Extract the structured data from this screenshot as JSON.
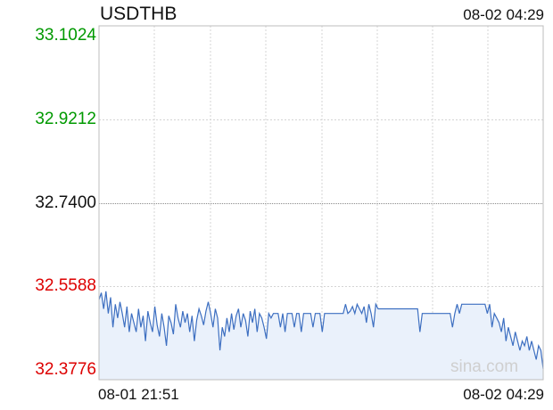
{
  "header": {
    "symbol": "USDTHB",
    "timestamp": "08-02 04:29"
  },
  "watermark": "sina.com",
  "colors": {
    "above": "#009900",
    "neutral": "#111111",
    "below": "#dd0000",
    "line": "#3d6fc1",
    "fill": "#eaf1fb",
    "grid": "#d4d4d4"
  },
  "chart_data": {
    "type": "area",
    "title": "USDTHB",
    "xlabel": "",
    "ylabel": "",
    "ylim": [
      32.3776,
      33.1024
    ],
    "y_ticks": [
      "33.1024",
      "32.9212",
      "32.7400",
      "32.5588",
      "32.3776"
    ],
    "reference_value": 32.74,
    "x_range": [
      "08-01 21:51",
      "08-02 04:29"
    ],
    "x_tick_labels": [
      "08-01 21:51",
      "08-02 04:29"
    ],
    "grid": true,
    "series": [
      {
        "values": [
          32.53,
          32.545,
          32.51,
          32.548,
          32.5,
          32.535,
          32.47,
          32.52,
          32.49,
          32.525,
          32.5,
          32.47,
          32.515,
          32.46,
          32.5,
          32.48,
          32.46,
          32.51,
          32.47,
          32.495,
          32.44,
          32.505,
          32.48,
          32.46,
          32.515,
          32.475,
          32.45,
          32.5,
          32.47,
          32.43,
          32.495,
          32.48,
          32.455,
          32.52,
          32.49,
          32.47,
          32.505,
          32.48,
          32.5,
          32.46,
          32.495,
          32.44,
          32.485,
          32.51,
          32.495,
          32.475,
          32.505,
          32.525,
          32.5,
          32.47,
          32.51,
          32.49,
          32.42,
          32.47,
          32.45,
          32.49,
          32.46,
          32.5,
          32.465,
          32.495,
          32.51,
          32.47,
          32.5,
          32.485,
          32.45,
          32.505,
          32.48,
          32.51,
          32.46,
          32.5,
          32.49,
          32.47,
          32.445,
          32.5,
          32.49,
          32.5,
          32.5,
          32.5,
          32.47,
          32.5,
          32.46,
          32.5,
          32.5,
          32.5,
          32.47,
          32.5,
          32.5,
          32.46,
          32.5,
          32.5,
          32.5,
          32.5,
          32.47,
          32.5,
          32.5,
          32.5,
          32.46,
          32.5,
          32.5,
          32.5,
          32.5,
          32.5,
          32.5,
          32.5,
          32.5,
          32.5,
          32.52,
          32.5,
          32.505,
          32.515,
          32.5,
          32.52,
          32.51,
          32.5,
          32.515,
          32.48,
          32.52,
          32.5,
          32.47,
          32.52,
          32.51,
          32.51,
          32.51,
          32.51,
          32.51,
          32.51,
          32.51,
          32.51,
          32.51,
          32.51,
          32.51,
          32.51,
          32.51,
          32.51,
          32.51,
          32.51,
          32.51,
          32.51,
          32.46,
          32.5,
          32.5,
          32.5,
          32.5,
          32.5,
          32.5,
          32.5,
          32.5,
          32.5,
          32.5,
          32.5,
          32.5,
          32.5,
          32.47,
          32.5,
          32.52,
          32.5,
          32.52,
          32.52,
          32.52,
          32.52,
          32.52,
          32.52,
          32.52,
          32.52,
          32.52,
          32.52,
          32.52,
          32.5,
          32.52,
          32.47,
          32.5,
          32.49,
          32.48,
          32.46,
          32.49,
          32.44,
          32.47,
          32.45,
          32.43,
          32.46,
          32.44,
          32.42,
          32.44,
          32.43,
          32.45,
          32.42,
          32.44,
          32.42,
          32.4,
          32.43,
          32.42,
          32.38
        ]
      }
    ]
  }
}
